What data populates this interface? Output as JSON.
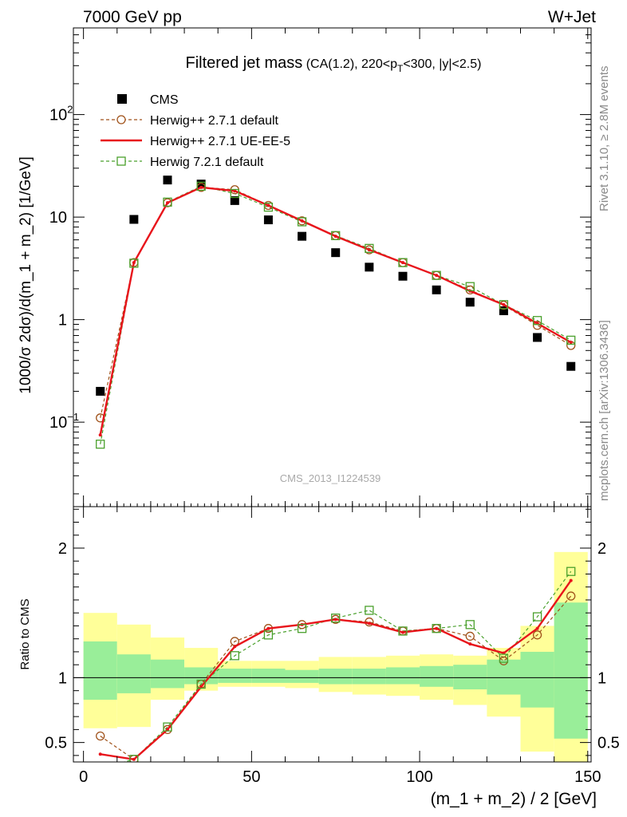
{
  "header": {
    "left": "7000 GeV pp",
    "right": "W+Jet"
  },
  "title": {
    "main": "Filtered jet mass",
    "sub_pre": "(CA(1.2), 220<p",
    "sub_sub": "T",
    "sub_post": "<300, |y|<2.5)"
  },
  "side_labels": {
    "rivet": "Rivet 3.1.10, ≥ 2.8M events",
    "mcplots": "mcplots.cern.ch [arXiv:1306.3436]"
  },
  "watermark": "CMS_2013_I1224539",
  "chart_data": [
    {
      "type": "scatter",
      "panel": "main",
      "ylabel": "1000/σ 2dσ)/d(m_1 + m_2) [1/GeV]",
      "yscale": "log",
      "ylim": [
        0.015,
        700
      ],
      "xlim": [
        -3,
        151
      ],
      "yticks": [
        {
          "value": 0.1,
          "base": "10",
          "exp": "−1"
        },
        {
          "value": 1,
          "base": "1",
          "exp": ""
        },
        {
          "value": 10,
          "base": "10",
          "exp": ""
        },
        {
          "value": 100,
          "base": "10",
          "exp": "2"
        }
      ],
      "x": [
        5,
        15,
        25,
        35,
        45,
        55,
        65,
        75,
        85,
        95,
        105,
        115,
        125,
        135,
        145
      ],
      "series": [
        {
          "name": "CMS",
          "style": "square-filled",
          "color": "#000000",
          "values": [
            0.2,
            9.5,
            23,
            21,
            14.5,
            9.4,
            6.5,
            4.5,
            3.25,
            2.65,
            1.95,
            1.48,
            1.22,
            0.67,
            0.35
          ]
        },
        {
          "name": "Herwig++ 2.7.1 default",
          "style": "circle-dashed",
          "color": "#a0521a",
          "values": [
            0.11,
            3.6,
            13.8,
            19.5,
            18.5,
            13,
            9.2,
            6.6,
            4.8,
            3.6,
            2.7,
            1.95,
            1.38,
            0.88,
            0.56
          ]
        },
        {
          "name": "Herwig++ 2.7.1 UE-EE-5",
          "style": "line-solid",
          "color": "#e8141b",
          "values": [
            0.075,
            3.6,
            13.8,
            19.5,
            18,
            13,
            9.2,
            6.5,
            4.8,
            3.6,
            2.7,
            1.9,
            1.4,
            0.92,
            0.6
          ]
        },
        {
          "name": "Herwig 7.2.1 default",
          "style": "square-dashed",
          "color": "#4aa02c",
          "values": [
            0.061,
            3.55,
            14,
            20,
            17,
            12.5,
            9,
            6.6,
            4.95,
            3.6,
            2.7,
            2.1,
            1.4,
            0.98,
            0.63
          ]
        }
      ]
    },
    {
      "type": "line",
      "panel": "ratio",
      "ylabel": "Ratio to CMS",
      "xlabel": "(m_1 + m_2) / 2 [GeV]",
      "ylim": [
        0.35,
        2.32
      ],
      "xlim": [
        -3,
        151
      ],
      "yticks": [
        0.5,
        1,
        2
      ],
      "xticks": [
        0,
        50,
        100,
        150
      ],
      "x": [
        5,
        15,
        25,
        35,
        45,
        55,
        65,
        75,
        85,
        95,
        105,
        115,
        125,
        135,
        145
      ],
      "uncertainty_yellow": [
        [
          0.61,
          1.5
        ],
        [
          0.62,
          1.41
        ],
        [
          0.83,
          1.31
        ],
        [
          0.9,
          1.23
        ],
        [
          0.93,
          1.13
        ],
        [
          0.93,
          1.13
        ],
        [
          0.92,
          1.13
        ],
        [
          0.89,
          1.16
        ],
        [
          0.87,
          1.16
        ],
        [
          0.86,
          1.17
        ],
        [
          0.83,
          1.18
        ],
        [
          0.79,
          1.17
        ],
        [
          0.7,
          1.23
        ],
        [
          0.43,
          1.4
        ],
        [
          0.3,
          1.97
        ]
      ],
      "uncertainty_green": [
        [
          0.83,
          1.28
        ],
        [
          0.88,
          1.18
        ],
        [
          0.92,
          1.14
        ],
        [
          0.95,
          1.08
        ],
        [
          0.96,
          1.07
        ],
        [
          0.96,
          1.07
        ],
        [
          0.96,
          1.06
        ],
        [
          0.95,
          1.07
        ],
        [
          0.95,
          1.07
        ],
        [
          0.95,
          1.08
        ],
        [
          0.93,
          1.09
        ],
        [
          0.91,
          1.1
        ],
        [
          0.87,
          1.14
        ],
        [
          0.77,
          1.2
        ],
        [
          0.53,
          1.58
        ]
      ],
      "series": [
        {
          "name": "Herwig++ 2.7.1 default",
          "values": [
            0.55,
            0.37,
            0.6,
            0.95,
            1.28,
            1.38,
            1.41,
            1.45,
            1.43,
            1.36,
            1.38,
            1.32,
            1.13,
            1.33,
            1.63
          ]
        },
        {
          "name": "Herwig++ 2.7.1 UE-EE-5",
          "values": [
            0.41,
            0.37,
            0.6,
            0.93,
            1.24,
            1.38,
            1.41,
            1.45,
            1.42,
            1.35,
            1.38,
            1.26,
            1.19,
            1.38,
            1.75
          ]
        },
        {
          "name": "Herwig 7.2.1 default",
          "values": [
            0.3,
            0.37,
            0.62,
            0.95,
            1.17,
            1.33,
            1.38,
            1.46,
            1.52,
            1.36,
            1.38,
            1.41,
            1.15,
            1.47,
            1.82
          ]
        }
      ]
    }
  ]
}
